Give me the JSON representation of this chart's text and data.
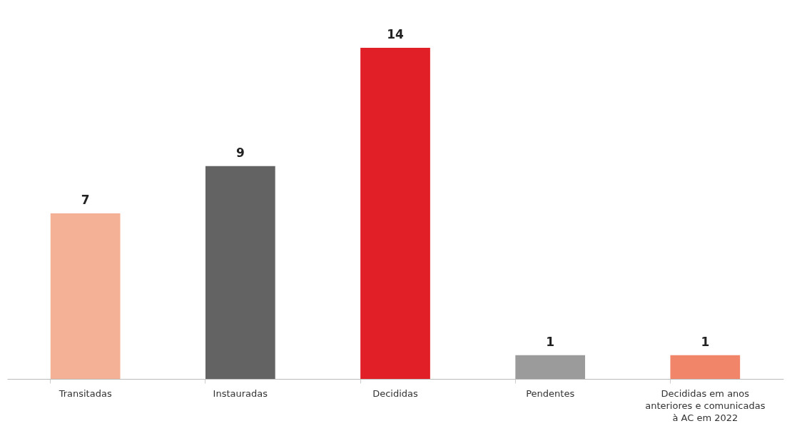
{
  "chart_data": {
    "type": "bar",
    "categories": [
      "Transitadas",
      "Instauradas",
      "Decididas",
      "Pendentes",
      "Decididas em anos\nanteriores e comunicadas\nà AC em 2022"
    ],
    "values": [
      7,
      9,
      14,
      1,
      1
    ],
    "colors": [
      "#f5b196",
      "#636363",
      "#e01f26",
      "#9b9b9b",
      "#f0856a"
    ],
    "data_labels": true
  }
}
